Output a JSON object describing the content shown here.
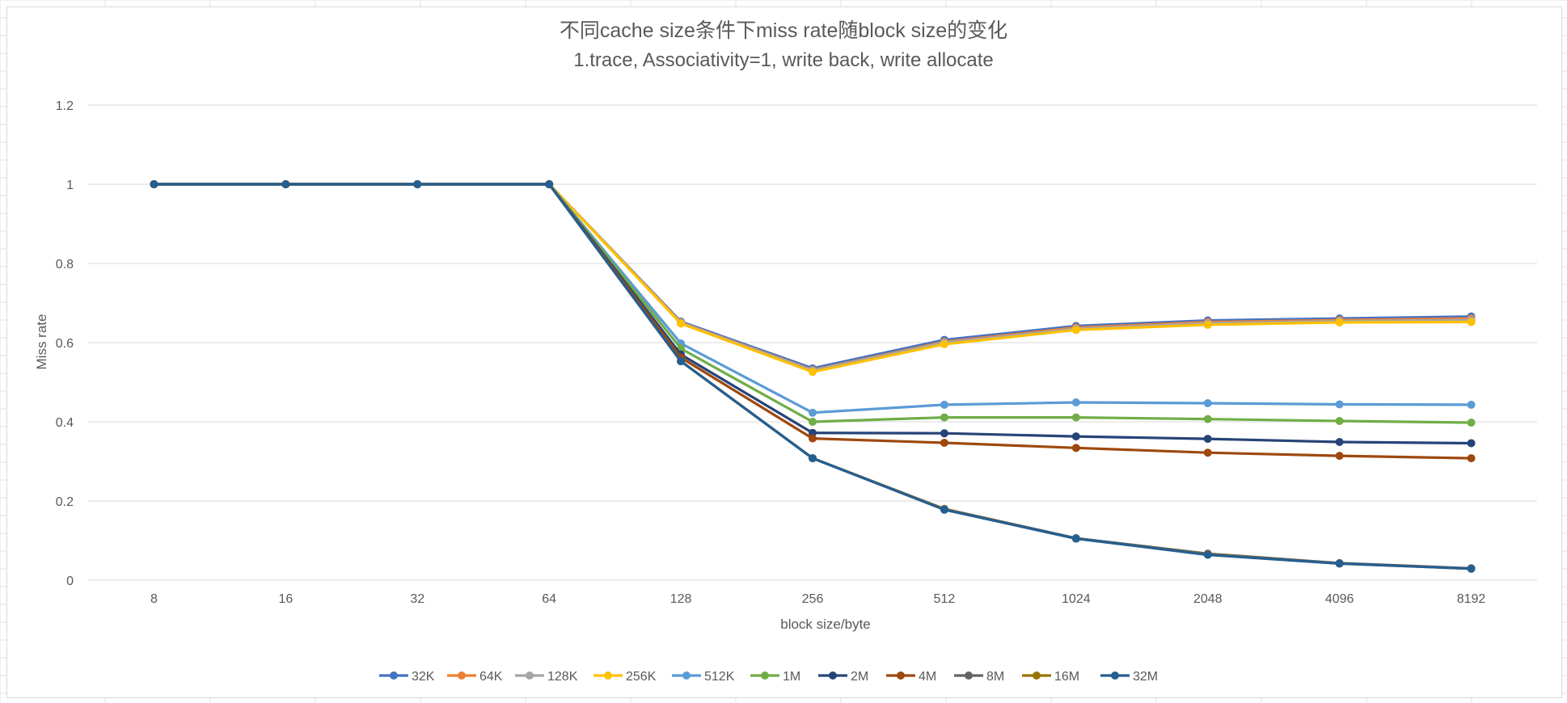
{
  "chart_data": {
    "type": "line",
    "title": "不同cache size条件下miss rate随block size的变化",
    "subtitle": "1.trace, Associativity=1, write back, write allocate",
    "xlabel": "block size/byte",
    "ylabel": "Miss rate",
    "categories": [
      "8",
      "16",
      "32",
      "64",
      "128",
      "256",
      "512",
      "1024",
      "2048",
      "4096",
      "8192"
    ],
    "ylim": [
      0,
      1.2
    ],
    "yticks": [
      "0",
      "0.2",
      "0.4",
      "0.6",
      "0.8",
      "1",
      "1.2"
    ],
    "grid": true,
    "legend_position": "bottom",
    "series": [
      {
        "name": "32K",
        "color": "#4472C4",
        "values": [
          1,
          1,
          1,
          1,
          0.653,
          0.535,
          0.607,
          0.642,
          0.656,
          0.661,
          0.666
        ]
      },
      {
        "name": "64K",
        "color": "#ED7D31",
        "values": [
          1,
          1,
          1,
          1,
          0.651,
          0.531,
          0.602,
          0.638,
          0.652,
          0.657,
          0.661
        ]
      },
      {
        "name": "128K",
        "color": "#A5A5A5",
        "values": [
          1,
          1,
          1,
          1,
          0.65,
          0.53,
          0.6,
          0.635,
          0.649,
          0.654,
          0.657
        ]
      },
      {
        "name": "256K",
        "color": "#FFC000",
        "values": [
          1,
          1,
          1,
          1,
          0.648,
          0.526,
          0.596,
          0.632,
          0.645,
          0.651,
          0.652
        ]
      },
      {
        "name": "512K",
        "color": "#5B9BD5",
        "values": [
          1,
          1,
          1,
          1,
          0.598,
          0.423,
          0.443,
          0.449,
          0.447,
          0.444,
          0.443
        ]
      },
      {
        "name": "1M",
        "color": "#70AD47",
        "values": [
          1,
          1,
          1,
          1,
          0.585,
          0.4,
          0.411,
          0.411,
          0.407,
          0.402,
          0.398
        ]
      },
      {
        "name": "2M",
        "color": "#264478",
        "values": [
          1,
          1,
          1,
          1,
          0.57,
          0.372,
          0.371,
          0.363,
          0.357,
          0.349,
          0.346
        ]
      },
      {
        "name": "4M",
        "color": "#9E480E",
        "values": [
          1,
          1,
          1,
          1,
          0.562,
          0.358,
          0.347,
          0.334,
          0.322,
          0.314,
          0.308
        ]
      },
      {
        "name": "8M",
        "color": "#636363",
        "values": [
          1,
          1,
          1,
          1,
          0.553,
          0.308,
          0.18,
          0.106,
          0.067,
          0.043,
          0.03
        ]
      },
      {
        "name": "16M",
        "color": "#997300",
        "values": [
          1,
          1,
          1,
          1,
          0.553,
          0.308,
          0.179,
          0.105,
          0.065,
          0.042,
          0.029
        ]
      },
      {
        "name": "32M",
        "color": "#255E91",
        "values": [
          1,
          1,
          1,
          1,
          0.553,
          0.308,
          0.178,
          0.105,
          0.064,
          0.042,
          0.029
        ]
      }
    ]
  }
}
